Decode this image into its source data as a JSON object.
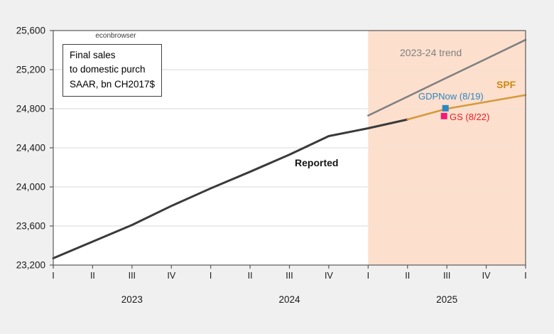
{
  "watermark": "econbrowser",
  "note_box": {
    "line1": "Final sales",
    "line2": "to domestic purch",
    "line3": "SAAR, bn CH2017$"
  },
  "annotations": {
    "reported_label": "Reported",
    "trend_label": "2023-24 trend",
    "spf_label": "SPF",
    "gdpnow_label": "GDPNow (8/19)",
    "gs_label": "GS (8/22)"
  },
  "colors": {
    "outer_background": "#f0f0f0",
    "plot_background": "#ffffff",
    "forecast_shading": "#fcdfcd",
    "gridline": "#d9d9d9",
    "gridline_over_shading": "#f3e0d3",
    "axis_frame": "#595959",
    "reported_line": "#3a3a3a",
    "spf_line": "#d59a3c",
    "trend_line": "#7f7f7f",
    "gdpnow_marker": "#2e86c1",
    "gs_marker": "#ef1a78",
    "tick_text": "#1a1a1a"
  },
  "chart_data": {
    "type": "line",
    "title": "Final sales to domestic purch SAAR, bn CH2017$",
    "xlabel": "",
    "ylabel": "",
    "ylim": [
      23200,
      25600
    ],
    "ytick_values": [
      23200,
      23600,
      24000,
      24400,
      24800,
      25200,
      25600
    ],
    "ytick_labels": [
      "23,200",
      "23,600",
      "24,000",
      "24,400",
      "24,800",
      "25,200",
      "25,600"
    ],
    "x_tick_labels": [
      "I",
      "II",
      "III",
      "IV",
      "I",
      "II",
      "III",
      "IV",
      "I",
      "II",
      "III",
      "IV",
      "I"
    ],
    "year_labels": [
      {
        "label": "2023",
        "tick_index": 2
      },
      {
        "label": "2024",
        "tick_index": 6
      },
      {
        "label": "2025",
        "tick_index": 10
      }
    ],
    "grid": "horizontal",
    "shaded_region": {
      "from_tick_index": 8,
      "to_tick_index": 12
    },
    "series": [
      {
        "name": "Reported",
        "color_key": "reported_line",
        "line_width": 3,
        "start_index": 0,
        "values": [
          23270,
          23440,
          23610,
          23805,
          23985,
          24155,
          24330,
          24520,
          24600,
          24690
        ]
      },
      {
        "name": "SPF",
        "color_key": "spf_line",
        "line_width": 2.5,
        "start_index": 9,
        "values": [
          24690,
          24800,
          24870,
          24940
        ]
      },
      {
        "name": "2023-24 trend",
        "color_key": "trend_line",
        "line_width": 2.5,
        "start_index": 8,
        "values": [
          24730,
          24924,
          25118,
          25311,
          25505
        ]
      }
    ],
    "markers": [
      {
        "name": "GDPNow (8/19)",
        "x_index": 10,
        "value": 24805,
        "dx": -2,
        "color_key": "gdpnow_marker",
        "size": 9
      },
      {
        "name": "GS (8/22)",
        "x_index": 10,
        "value": 24725,
        "dx": -4,
        "color_key": "gs_marker",
        "size": 9
      }
    ]
  }
}
